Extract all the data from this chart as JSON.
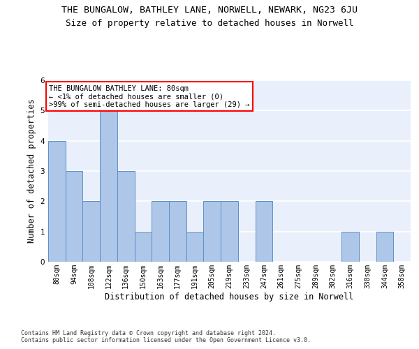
{
  "title": "THE BUNGALOW, BATHLEY LANE, NORWELL, NEWARK, NG23 6JU",
  "subtitle": "Size of property relative to detached houses in Norwell",
  "xlabel": "Distribution of detached houses by size in Norwell",
  "ylabel": "Number of detached properties",
  "categories": [
    "80sqm",
    "94sqm",
    "108sqm",
    "122sqm",
    "136sqm",
    "150sqm",
    "163sqm",
    "177sqm",
    "191sqm",
    "205sqm",
    "219sqm",
    "233sqm",
    "247sqm",
    "261sqm",
    "275sqm",
    "289sqm",
    "302sqm",
    "316sqm",
    "330sqm",
    "344sqm",
    "358sqm"
  ],
  "values": [
    4,
    3,
    2,
    5,
    3,
    1,
    2,
    2,
    1,
    2,
    2,
    0,
    2,
    0,
    0,
    0,
    0,
    1,
    0,
    1,
    0
  ],
  "bar_color": "#aec6e8",
  "bar_edge_color": "#5b8fc9",
  "annotation_text": "THE BUNGALOW BATHLEY LANE: 80sqm\n← <1% of detached houses are smaller (0)\n>99% of semi-detached houses are larger (29) →",
  "ylim": [
    0,
    6
  ],
  "yticks": [
    0,
    1,
    2,
    3,
    4,
    5,
    6
  ],
  "background_color": "#eaf0fb",
  "footer": "Contains HM Land Registry data © Crown copyright and database right 2024.\nContains public sector information licensed under the Open Government Licence v3.0.",
  "title_fontsize": 9.5,
  "subtitle_fontsize": 9,
  "tick_fontsize": 7,
  "ylabel_fontsize": 8.5,
  "xlabel_fontsize": 8.5,
  "annotation_fontsize": 7.5,
  "footer_fontsize": 6
}
